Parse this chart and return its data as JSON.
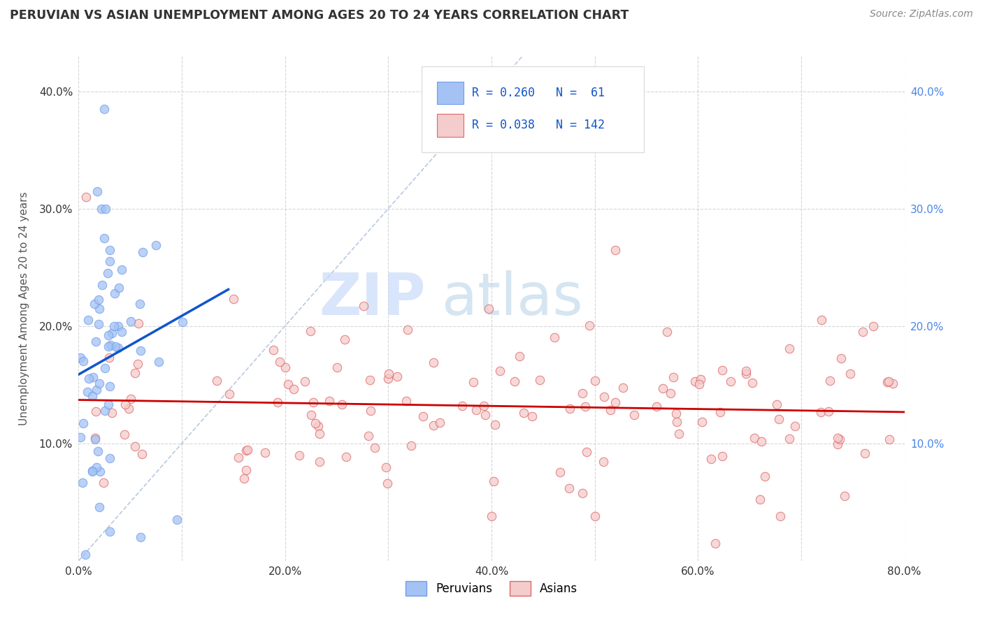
{
  "title": "PERUVIAN VS ASIAN UNEMPLOYMENT AMONG AGES 20 TO 24 YEARS CORRELATION CHART",
  "source": "Source: ZipAtlas.com",
  "ylabel": "Unemployment Among Ages 20 to 24 years",
  "xlim": [
    0.0,
    0.8
  ],
  "ylim": [
    0.0,
    0.43
  ],
  "xticks": [
    0.0,
    0.1,
    0.2,
    0.3,
    0.4,
    0.5,
    0.6,
    0.7,
    0.8
  ],
  "xticklabels": [
    "0.0%",
    "",
    "20.0%",
    "",
    "40.0%",
    "",
    "60.0%",
    "",
    "80.0%"
  ],
  "yticks": [
    0.0,
    0.1,
    0.2,
    0.3,
    0.4
  ],
  "yticklabels": [
    "",
    "10.0%",
    "20.0%",
    "30.0%",
    "40.0%"
  ],
  "right_yticks": [
    0.1,
    0.2,
    0.3,
    0.4
  ],
  "right_yticklabels": [
    "10.0%",
    "20.0%",
    "30.0%",
    "40.0%"
  ],
  "peruvian_color": "#a4c2f4",
  "asian_color": "#f4cccc",
  "peruvian_edge": "#6d9eeb",
  "asian_edge": "#e06666",
  "regression_peruvian_color": "#1155cc",
  "regression_asian_color": "#cc0000",
  "diagonal_color": "#b0c4de",
  "legend_R1": "R = 0.260",
  "legend_N1": "N =  61",
  "legend_R2": "R = 0.038",
  "legend_N2": "N = 142",
  "background_color": "#ffffff",
  "grid_color": "#cccccc",
  "peru_regression_x0": 0.0,
  "peru_regression_y0": 0.115,
  "peru_regression_x1": 0.145,
  "peru_regression_y1": 0.245,
  "asian_regression_x0": 0.0,
  "asian_regression_y0": 0.127,
  "asian_regression_x1": 0.8,
  "asian_regression_y1": 0.135,
  "watermark_zip": "ZIP",
  "watermark_atlas": "atlas"
}
